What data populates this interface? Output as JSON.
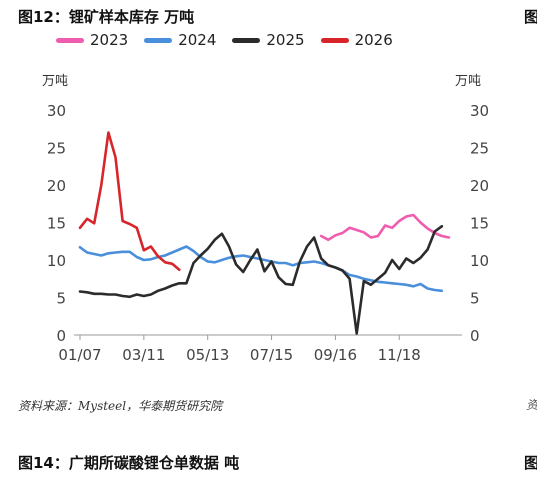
{
  "figure": {
    "title": "图12：锂矿样本库存 万吨",
    "next_title": "图14：广期所碳酸锂仓单数据 吨",
    "edge_char": "图",
    "edge_foot": "资"
  },
  "source": "资料来源：Mysteel，华泰期货研究院",
  "chart_data": {
    "type": "line",
    "title": "",
    "ylabel_left": "万吨",
    "ylabel_right": "万吨",
    "ylim": [
      0,
      30
    ],
    "yticks": [
      0,
      5,
      10,
      15,
      20,
      25,
      30
    ],
    "x_ticks": [
      "01/07",
      "03/11",
      "05/13",
      "07/15",
      "09/16",
      "11/18"
    ],
    "x_tick_index": [
      0,
      9,
      18,
      27,
      36,
      45
    ],
    "x_max_index": 53,
    "grid": false,
    "legend_position": "top",
    "series": [
      {
        "name": "2023",
        "color": "#f05cae",
        "points": [
          [
            34,
            13.2
          ],
          [
            35,
            12.7
          ],
          [
            36,
            13.3
          ],
          [
            37,
            13.6
          ],
          [
            38,
            14.3
          ],
          [
            39,
            14.0
          ],
          [
            40,
            13.7
          ],
          [
            41,
            13.0
          ],
          [
            42,
            13.2
          ],
          [
            43,
            14.6
          ],
          [
            44,
            14.3
          ],
          [
            45,
            15.2
          ],
          [
            46,
            15.8
          ],
          [
            47,
            16.0
          ],
          [
            48,
            15.0
          ],
          [
            49,
            14.2
          ],
          [
            50,
            13.6
          ],
          [
            51,
            13.2
          ],
          [
            52,
            13.0
          ]
        ]
      },
      {
        "name": "2024",
        "color": "#4a8fdc",
        "points": [
          [
            0,
            11.7
          ],
          [
            1,
            11.0
          ],
          [
            2,
            10.8
          ],
          [
            3,
            10.6
          ],
          [
            4,
            10.9
          ],
          [
            5,
            11.0
          ],
          [
            6,
            11.1
          ],
          [
            7,
            11.1
          ],
          [
            8,
            10.4
          ],
          [
            9,
            10.0
          ],
          [
            10,
            10.1
          ],
          [
            11,
            10.4
          ],
          [
            12,
            10.6
          ],
          [
            13,
            11.0
          ],
          [
            14,
            11.4
          ],
          [
            15,
            11.8
          ],
          [
            16,
            11.2
          ],
          [
            17,
            10.4
          ],
          [
            18,
            9.8
          ],
          [
            19,
            9.7
          ],
          [
            20,
            10.0
          ],
          [
            21,
            10.3
          ],
          [
            22,
            10.5
          ],
          [
            23,
            10.6
          ],
          [
            24,
            10.4
          ],
          [
            25,
            10.2
          ],
          [
            26,
            10.0
          ],
          [
            27,
            9.8
          ],
          [
            28,
            9.6
          ],
          [
            29,
            9.6
          ],
          [
            30,
            9.3
          ],
          [
            31,
            9.6
          ],
          [
            32,
            9.7
          ],
          [
            33,
            9.8
          ],
          [
            34,
            9.6
          ],
          [
            35,
            9.3
          ],
          [
            36,
            9.0
          ],
          [
            37,
            8.6
          ],
          [
            38,
            8.0
          ],
          [
            39,
            7.8
          ],
          [
            40,
            7.5
          ],
          [
            41,
            7.3
          ],
          [
            42,
            7.1
          ],
          [
            43,
            7.0
          ],
          [
            44,
            6.9
          ],
          [
            45,
            6.8
          ],
          [
            46,
            6.7
          ],
          [
            47,
            6.5
          ],
          [
            48,
            6.8
          ],
          [
            49,
            6.2
          ],
          [
            50,
            6.0
          ],
          [
            51,
            5.9
          ]
        ]
      },
      {
        "name": "2025",
        "color": "#2b2b2b",
        "points": [
          [
            0,
            5.8
          ],
          [
            1,
            5.7
          ],
          [
            2,
            5.5
          ],
          [
            3,
            5.5
          ],
          [
            4,
            5.4
          ],
          [
            5,
            5.4
          ],
          [
            6,
            5.2
          ],
          [
            7,
            5.1
          ],
          [
            8,
            5.4
          ],
          [
            9,
            5.2
          ],
          [
            10,
            5.4
          ],
          [
            11,
            5.9
          ],
          [
            12,
            6.2
          ],
          [
            13,
            6.6
          ],
          [
            14,
            6.9
          ],
          [
            15,
            6.9
          ],
          [
            16,
            9.6
          ],
          [
            17,
            10.6
          ],
          [
            18,
            11.5
          ],
          [
            19,
            12.7
          ],
          [
            20,
            13.5
          ],
          [
            21,
            11.8
          ],
          [
            22,
            9.4
          ],
          [
            23,
            8.4
          ],
          [
            24,
            10.0
          ],
          [
            25,
            11.4
          ],
          [
            26,
            8.5
          ],
          [
            27,
            9.8
          ],
          [
            28,
            7.7
          ],
          [
            29,
            6.8
          ],
          [
            30,
            6.7
          ],
          [
            31,
            9.8
          ],
          [
            32,
            11.8
          ],
          [
            33,
            13.0
          ],
          [
            34,
            10.2
          ],
          [
            35,
            9.3
          ],
          [
            36,
            9.0
          ],
          [
            37,
            8.6
          ],
          [
            38,
            7.5
          ],
          [
            39,
            0.2
          ],
          [
            40,
            7.2
          ],
          [
            41,
            6.7
          ],
          [
            42,
            7.5
          ],
          [
            43,
            8.3
          ],
          [
            44,
            10.0
          ],
          [
            45,
            8.8
          ],
          [
            46,
            10.2
          ],
          [
            47,
            9.6
          ],
          [
            48,
            10.3
          ],
          [
            49,
            11.4
          ],
          [
            50,
            13.8
          ],
          [
            51,
            14.5
          ]
        ]
      },
      {
        "name": "2026",
        "color": "#d7252a",
        "points": [
          [
            0,
            14.3
          ],
          [
            1,
            15.5
          ],
          [
            2,
            14.9
          ],
          [
            3,
            20.0
          ],
          [
            4,
            27.0
          ],
          [
            5,
            23.7
          ],
          [
            6,
            15.2
          ],
          [
            7,
            14.8
          ],
          [
            8,
            14.3
          ],
          [
            9,
            11.3
          ],
          [
            10,
            11.8
          ],
          [
            11,
            10.5
          ],
          [
            12,
            9.7
          ],
          [
            13,
            9.5
          ],
          [
            14,
            8.7
          ]
        ]
      }
    ]
  }
}
